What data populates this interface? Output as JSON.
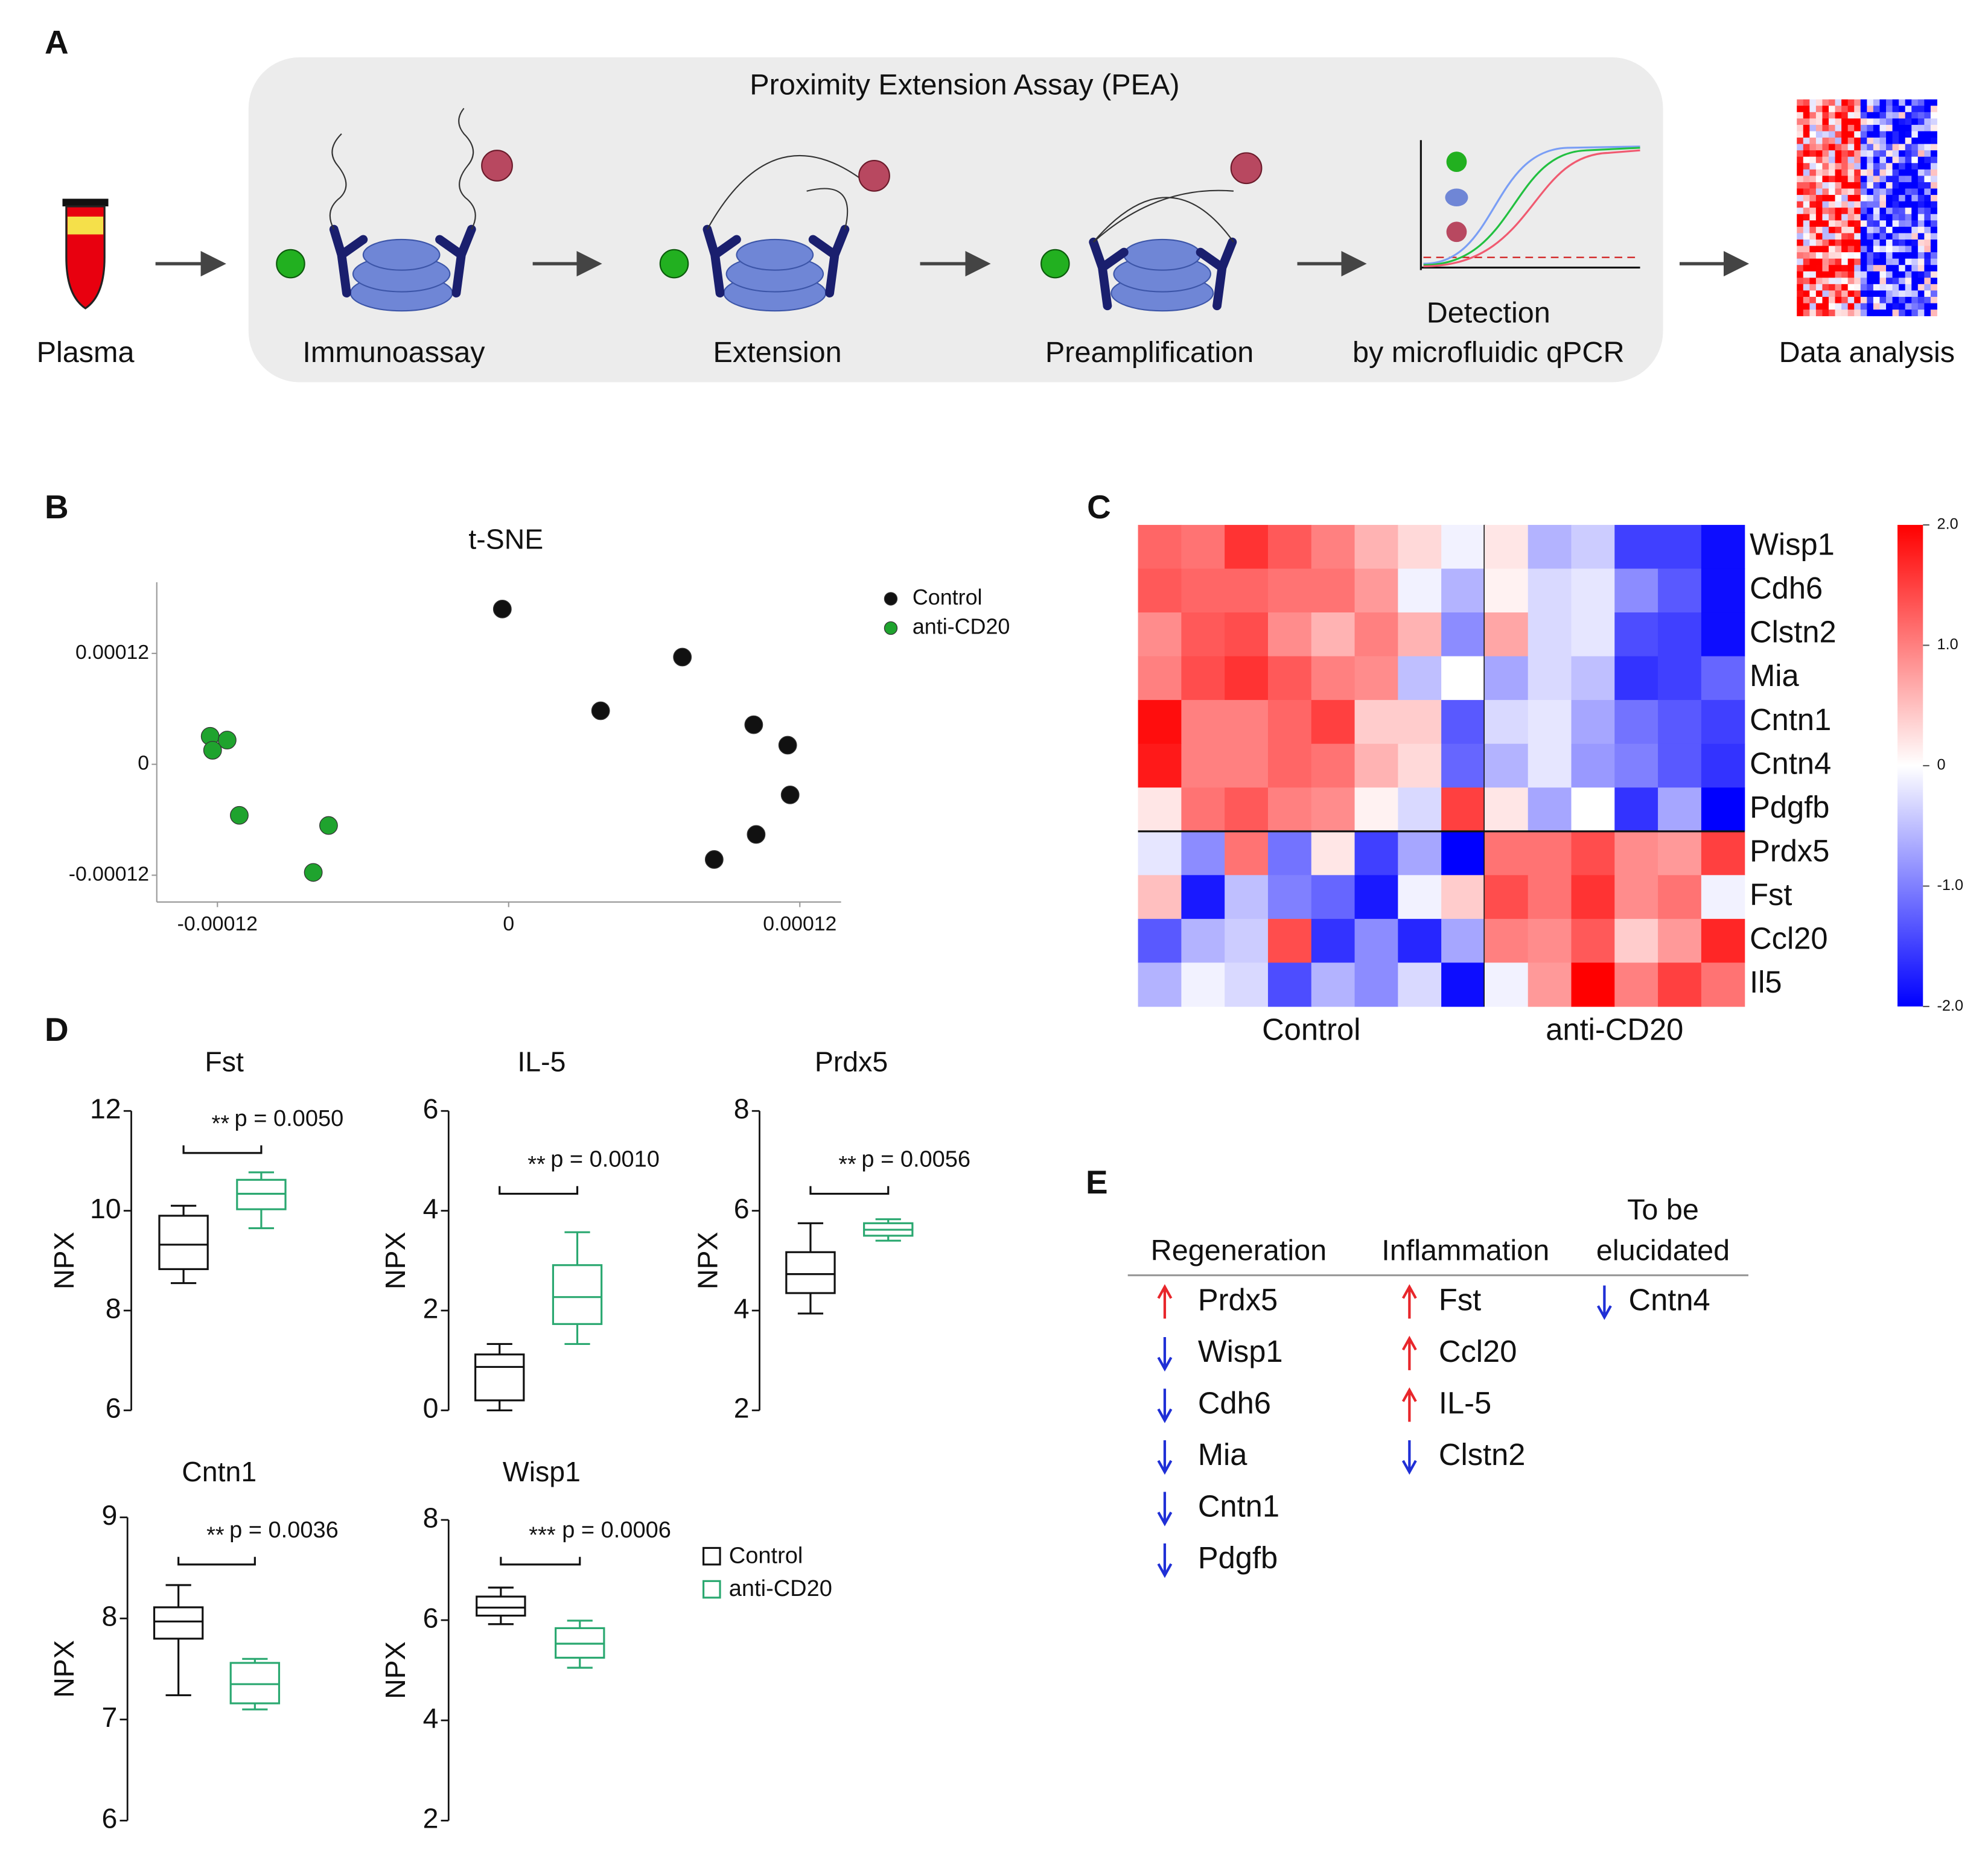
{
  "panel_labels": [
    "A",
    "B",
    "C",
    "D",
    "E"
  ],
  "diagram": {
    "title": "Proximity Extension Assay (PEA)",
    "steps": [
      [
        "Plasma"
      ],
      [
        "Immunoassay"
      ],
      [
        "Extension"
      ],
      [
        "Preamplification"
      ],
      [
        "Detection",
        "by microfluidic qPCR"
      ],
      [
        "Data analysis"
      ]
    ]
  },
  "chart_data": [
    {
      "type": "scatter",
      "title": "t-SNE",
      "xlim": [
        -0.000145,
        0.000137
      ],
      "ylim": [
        -0.000149,
        0.000197
      ],
      "xticks": [
        -0.00012,
        0,
        0.00012
      ],
      "yticks": [
        -0.00012,
        0,
        0.00012
      ],
      "legend": "right",
      "series": [
        {
          "name": "Control",
          "color": "#111111",
          "x": [
            -2.6e-06,
            7.16e-05,
            3.79e-05,
            0.000101,
            0.000115,
            0.000116,
            0.000102,
            8.47e-05
          ],
          "y": [
            0.000168,
            0.000116,
            5.79e-05,
            4.28e-05,
            2.07e-05,
            -3.31e-05,
            -7.59e-05,
            -0.000103
          ]
        },
        {
          "name": "anti-CD20",
          "color": "#1fa32e",
          "x": [
            -0.000123,
            -0.000116,
            -0.000122,
            -0.000111,
            -7.42e-05,
            -8.05e-05
          ],
          "y": [
            3.03e-05,
            2.62e-05,
            1.52e-05,
            -5.52e-05,
            -6.62e-05,
            -0.000117
          ]
        }
      ]
    },
    {
      "type": "heatmap",
      "rows": [
        "Wisp1",
        "Cdh6",
        "Clstn2",
        "Mia",
        "Cntn1",
        "Cntn4",
        "Pdgfb",
        "Prdx5",
        "Fst",
        "Ccl20",
        "Il5"
      ],
      "groups": [
        {
          "name": "Control",
          "values": [
            [
              1.2,
              1.1,
              1.6,
              1.3,
              1.0,
              0.6,
              0.3,
              -0.1
            ],
            [
              1.3,
              1.2,
              1.2,
              1.1,
              1.1,
              0.8,
              -0.1,
              -0.6
            ],
            [
              0.9,
              1.3,
              1.4,
              0.9,
              0.6,
              1.0,
              0.6,
              -0.9
            ],
            [
              1.0,
              1.4,
              1.6,
              1.3,
              1.0,
              0.9,
              -0.5,
              0.0
            ],
            [
              1.9,
              1.0,
              1.0,
              1.2,
              1.5,
              0.4,
              0.4,
              -1.3
            ],
            [
              1.8,
              1.0,
              1.0,
              1.2,
              1.1,
              0.6,
              0.3,
              -1.2
            ],
            [
              0.2,
              1.1,
              1.3,
              1.0,
              0.9,
              0.1,
              -0.3,
              1.5
            ],
            [
              -0.2,
              -0.9,
              1.1,
              -1.1,
              0.2,
              -1.5,
              -0.7,
              -2.0
            ],
            [
              0.5,
              -1.8,
              -0.5,
              -1.0,
              -1.2,
              -1.8,
              -0.1,
              0.4
            ],
            [
              -1.3,
              -0.6,
              -0.4,
              1.4,
              -1.6,
              -0.9,
              -1.7,
              -0.7
            ],
            [
              -0.6,
              -0.1,
              -0.3,
              -1.4,
              -0.6,
              -0.9,
              -0.3,
              -1.9
            ]
          ]
        },
        {
          "name": "anti-CD20",
          "values": [
            [
              0.2,
              -0.6,
              -0.4,
              -1.5,
              -1.5,
              -1.9
            ],
            [
              0.1,
              -0.3,
              -0.2,
              -0.9,
              -1.3,
              -1.9
            ],
            [
              0.7,
              -0.3,
              -0.2,
              -1.4,
              -1.5,
              -1.9
            ],
            [
              -0.7,
              -0.3,
              -0.5,
              -1.6,
              -1.5,
              -1.2
            ],
            [
              -0.3,
              -0.2,
              -0.7,
              -1.1,
              -1.3,
              -1.5
            ],
            [
              -0.6,
              -0.2,
              -0.8,
              -1.0,
              -1.3,
              -1.6
            ],
            [
              0.2,
              -0.7,
              0.0,
              -1.6,
              -0.7,
              -2.0
            ],
            [
              1.1,
              1.1,
              1.4,
              0.9,
              0.8,
              1.5
            ],
            [
              1.4,
              1.1,
              1.6,
              0.9,
              1.1,
              -0.1
            ],
            [
              1.0,
              0.9,
              1.3,
              0.4,
              0.8,
              1.7
            ],
            [
              -0.1,
              0.8,
              2.0,
              1.0,
              1.5,
              1.1
            ]
          ]
        }
      ],
      "zlim": [
        -2,
        2
      ],
      "zticks": [
        {
          "value": 2,
          "label": "2.0"
        },
        {
          "value": 1,
          "label": "1.0"
        },
        0,
        {
          "value": -1,
          "label": "-1.0"
        },
        {
          "value": -2,
          "label": "-2.0"
        }
      ],
      "colors": [
        "#0000ff",
        "#ffffff",
        "#ff0000"
      ]
    },
    {
      "type": "box",
      "title": "Fst",
      "ylabel": "NPX",
      "ylim": [
        6,
        12
      ],
      "yticks": [
        6,
        8,
        10,
        12
      ],
      "significance": "**",
      "p_text": "p = 0.0050",
      "boxes": [
        {
          "color": "#111111",
          "min": 8.55,
          "q1": 8.83,
          "median": 9.32,
          "q3": 9.9,
          "max": 10.1
        },
        {
          "color": "#2aa870",
          "min": 9.65,
          "q1": 10.03,
          "median": 10.34,
          "q3": 10.62,
          "max": 10.77
        }
      ]
    },
    {
      "type": "box",
      "title": "IL-5",
      "ylabel": "NPX",
      "ylim": [
        0,
        6
      ],
      "yticks": [
        0,
        2,
        4,
        6
      ],
      "significance": "**",
      "p_text": "p = 0.0010",
      "boxes": [
        {
          "color": "#111111",
          "min": 0,
          "q1": 0.2,
          "median": 0.87,
          "q3": 1.12,
          "max": 1.33
        },
        {
          "color": "#2aa870",
          "min": 1.33,
          "q1": 1.73,
          "median": 2.27,
          "q3": 2.91,
          "max": 3.57
        }
      ]
    },
    {
      "type": "box",
      "title": "Prdx5",
      "ylabel": "NPX",
      "ylim": [
        2,
        8
      ],
      "yticks": [
        2,
        4,
        6,
        8
      ],
      "significance": "**",
      "p_text": "p = 0.0056",
      "boxes": [
        {
          "color": "#111111",
          "min": 3.94,
          "q1": 4.35,
          "median": 4.73,
          "q3": 5.17,
          "max": 5.75
        },
        {
          "color": "#2aa870",
          "min": 5.4,
          "q1": 5.5,
          "median": 5.62,
          "q3": 5.75,
          "max": 5.83
        }
      ]
    },
    {
      "type": "box",
      "title": "Cntn1",
      "ylabel": "NPX",
      "ylim": [
        6,
        9
      ],
      "yticks": [
        6,
        7,
        8,
        9
      ],
      "significance": "**",
      "p_text": "p = 0.0036",
      "boxes": [
        {
          "color": "#111111",
          "min": 7.24,
          "q1": 7.8,
          "median": 7.97,
          "q3": 8.11,
          "max": 8.33
        },
        {
          "color": "#2aa870",
          "min": 7.1,
          "q1": 7.16,
          "median": 7.35,
          "q3": 7.56,
          "max": 7.6
        }
      ]
    },
    {
      "type": "box",
      "title": "Wisp1",
      "ylabel": "NPX",
      "ylim": [
        2,
        8
      ],
      "yticks": [
        2,
        4,
        6,
        8
      ],
      "significance": "***",
      "p_text": "p = 0.0006",
      "boxes": [
        {
          "color": "#111111",
          "min": 5.92,
          "q1": 6.09,
          "median": 6.25,
          "q3": 6.47,
          "max": 6.65
        },
        {
          "color": "#2aa870",
          "min": 5.05,
          "q1": 5.25,
          "median": 5.53,
          "q3": 5.84,
          "max": 5.99
        }
      ],
      "legend": {
        "position": "right",
        "entries": [
          {
            "name": "Control",
            "color": "#111111"
          },
          {
            "name": "anti-CD20",
            "color": "#2aa870"
          }
        ]
      }
    }
  ],
  "table": {
    "columns": [
      {
        "header": [
          "Regeneration"
        ],
        "items": [
          {
            "name": "Prdx5",
            "direction": "up"
          },
          {
            "name": "Wisp1",
            "direction": "down"
          },
          {
            "name": "Cdh6",
            "direction": "down"
          },
          {
            "name": "Mia",
            "direction": "down"
          },
          {
            "name": "Cntn1",
            "direction": "down"
          },
          {
            "name": "Pdgfb",
            "direction": "down"
          }
        ]
      },
      {
        "header": [
          "Inflammation"
        ],
        "items": [
          {
            "name": "Fst",
            "direction": "up"
          },
          {
            "name": "Ccl20",
            "direction": "up"
          },
          {
            "name": "IL-5",
            "direction": "up"
          },
          {
            "name": "Clstn2",
            "direction": "down"
          }
        ]
      },
      {
        "header": [
          "To be",
          "elucidated"
        ],
        "items": [
          {
            "name": "Cntn4",
            "direction": "down"
          }
        ]
      }
    ],
    "colors": {
      "up": "#e8262b",
      "down": "#1f2fd6"
    }
  }
}
